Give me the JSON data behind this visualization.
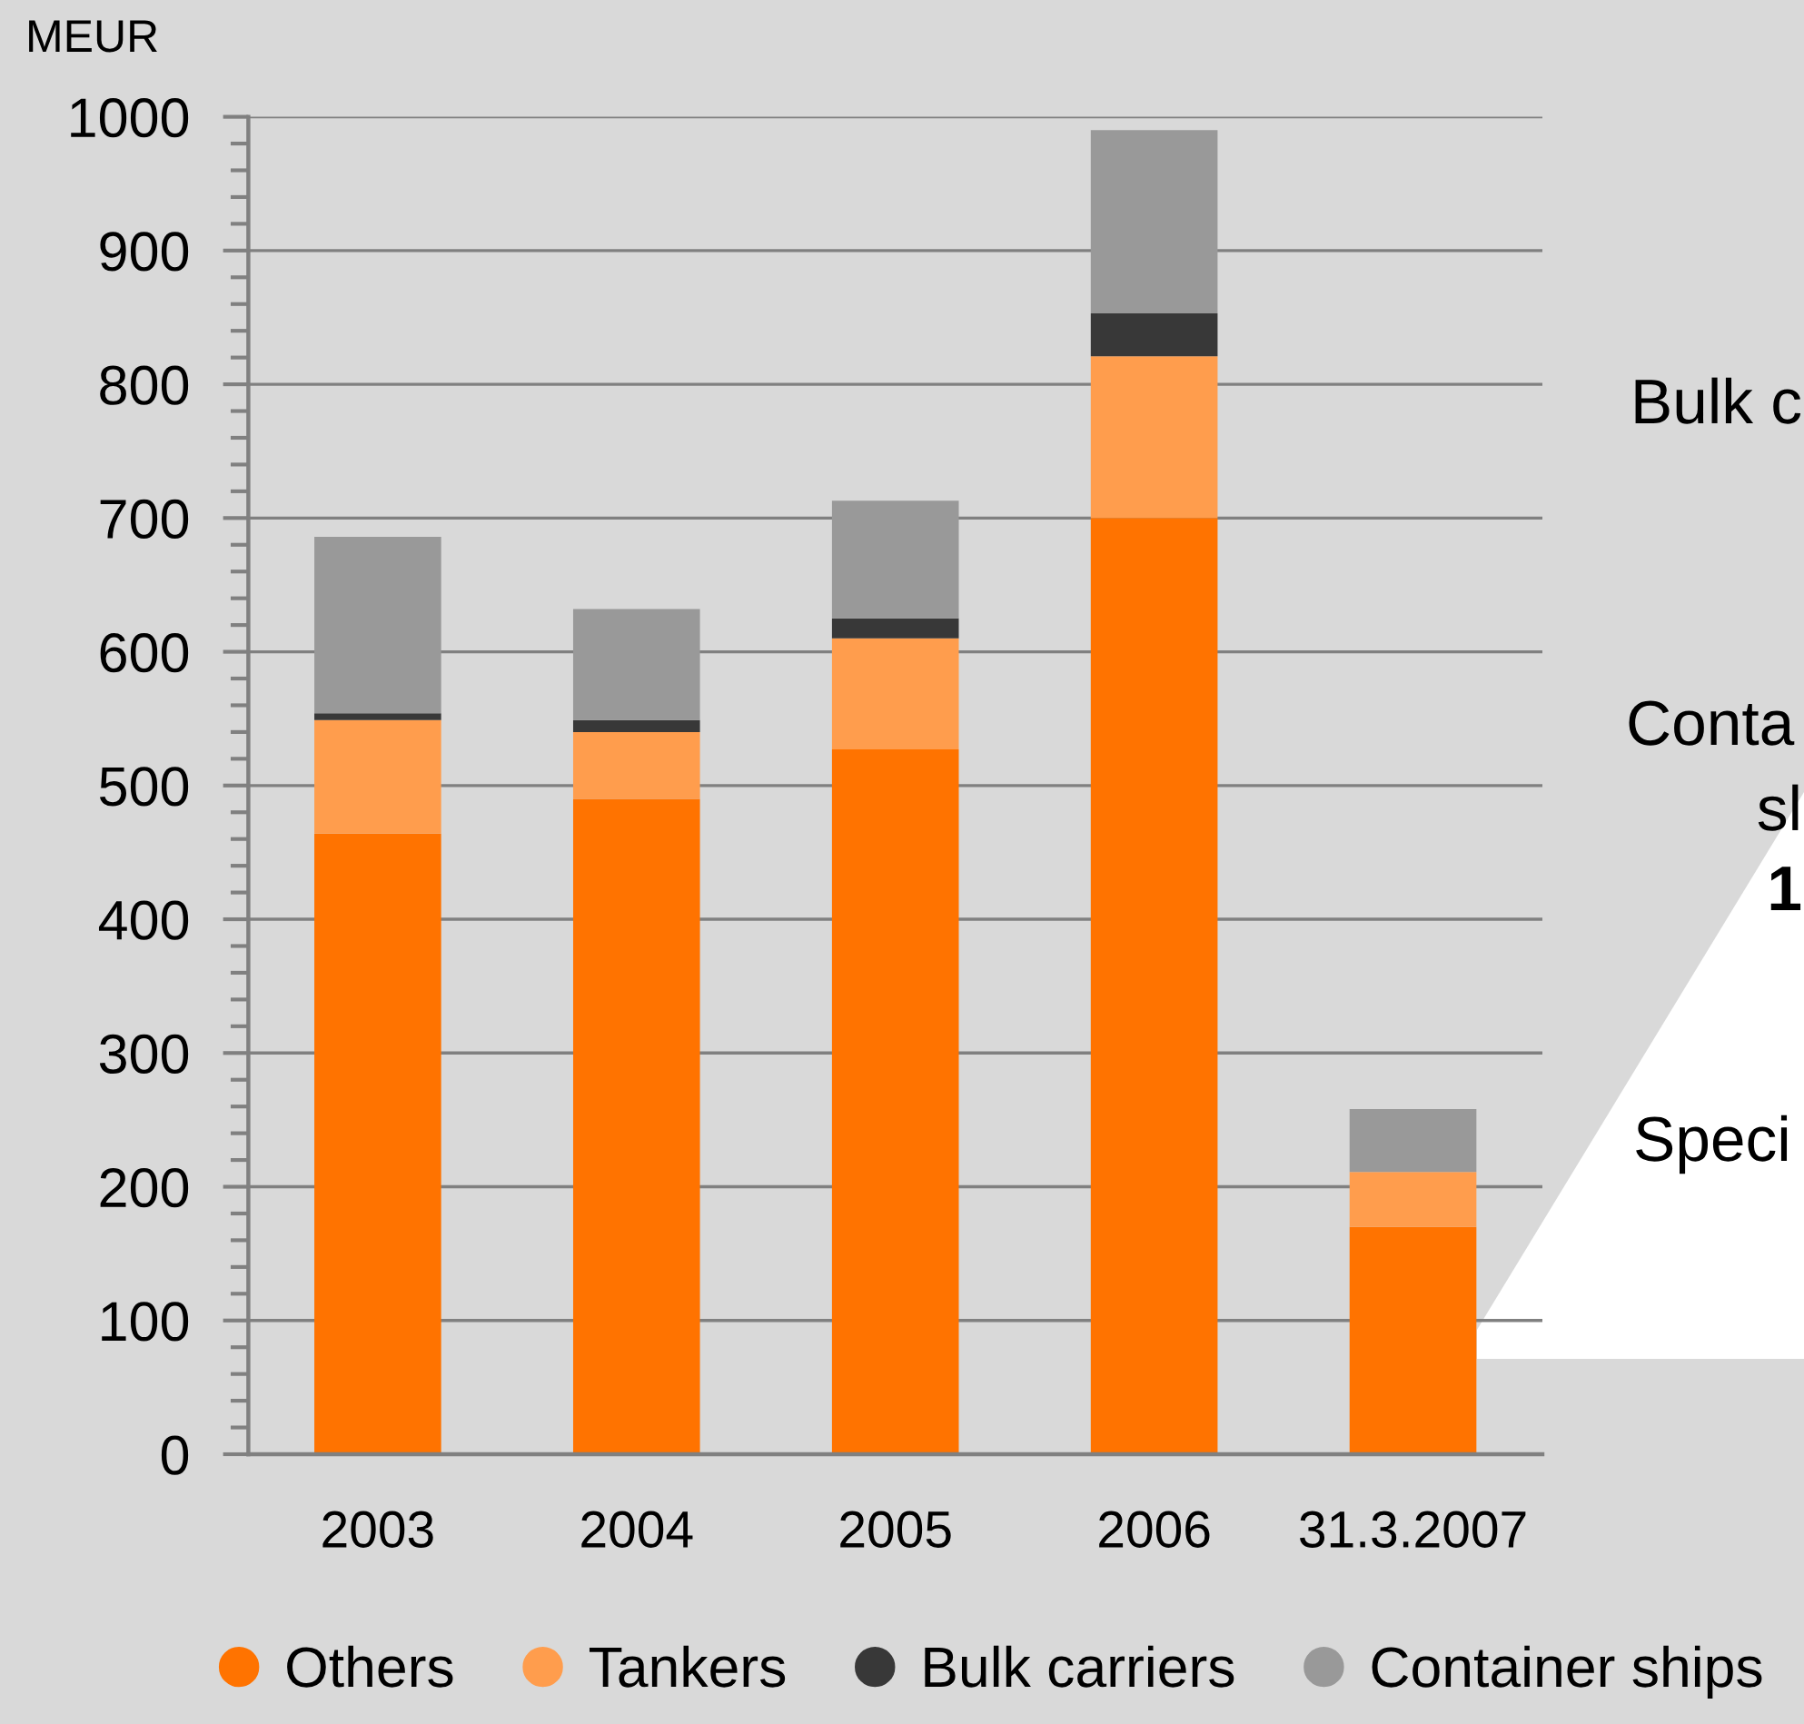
{
  "chart_data": {
    "type": "bar",
    "stacked": true,
    "ylabel": "MEUR",
    "categories": [
      "2003",
      "2004",
      "2005",
      "2006",
      "31.3.2007"
    ],
    "series": [
      {
        "name": "Others",
        "color": "#ff7300",
        "values": [
          464,
          490,
          527,
          700,
          170
        ]
      },
      {
        "name": "Tankers",
        "color": "#ff9d4d",
        "values": [
          85,
          50,
          83,
          121,
          41
        ]
      },
      {
        "name": "Bulk carriers",
        "color": "#383838",
        "values": [
          5,
          9,
          15,
          32,
          null
        ]
      },
      {
        "name": "Container ships",
        "color": "#999999",
        "values": [
          132,
          83,
          88,
          137,
          47
        ]
      }
    ],
    "ylim": [
      0,
      1000
    ],
    "yticks": [
      0,
      100,
      200,
      300,
      400,
      500,
      600,
      700,
      800,
      900,
      1000
    ],
    "grid": "y",
    "legend": "bottom",
    "annotations": [
      "Bulk c",
      "Conta",
      "sl",
      "1",
      "Speci"
    ]
  }
}
